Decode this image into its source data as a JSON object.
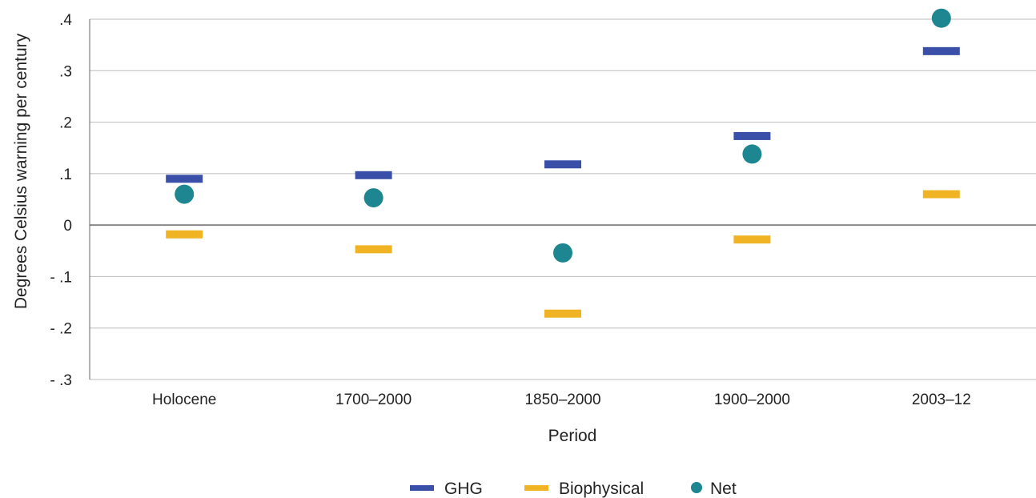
{
  "chart_data": {
    "type": "scatter",
    "xlabel": "Period",
    "ylabel": "Degrees Celsius warning per century",
    "categories": [
      "Holocene",
      "1700–2000",
      "1850–2000",
      "1900–2000",
      "2003–12"
    ],
    "ylim": [
      -0.3,
      0.4
    ],
    "yticks": [
      0.4,
      0.3,
      0.2,
      0.1,
      0,
      -0.1,
      -0.2,
      -0.3
    ],
    "ytick_labels": [
      ".4",
      ".3",
      ".2",
      ".1",
      "0",
      "- .1",
      "- .2",
      "- .3"
    ],
    "grid": "horizontal",
    "legend_position": "bottom-center",
    "series": [
      {
        "name": "GHG",
        "marker": "dash",
        "color": "#3a50a8",
        "values": [
          0.09,
          0.097,
          0.118,
          0.173,
          0.338
        ]
      },
      {
        "name": "Biophysical",
        "marker": "dash",
        "color": "#f0b323",
        "values": [
          -0.018,
          -0.047,
          -0.172,
          -0.028,
          0.06
        ]
      },
      {
        "name": "Net",
        "marker": "circle",
        "color": "#1d8690",
        "values": [
          0.06,
          0.053,
          -0.054,
          0.138,
          0.402
        ]
      }
    ],
    "colors": {
      "grid": "#bbbbbb",
      "zero_line": "#888888",
      "axis": "#666666"
    }
  }
}
